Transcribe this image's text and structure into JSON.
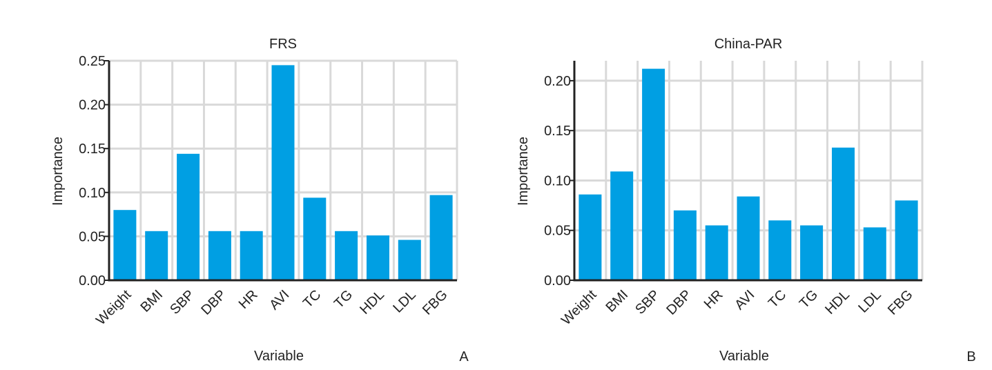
{
  "colors": {
    "bar": "#009FE3",
    "grid": "#d9d9d9",
    "axis": "#222222"
  },
  "chart_data": [
    {
      "type": "bar",
      "title": "FRS",
      "xlabel": "Variable",
      "ylabel": "Importance",
      "panel_label": "A",
      "categories": [
        "Weight",
        "BMI",
        "SBP",
        "DBP",
        "HR",
        "AVI",
        "TC",
        "TG",
        "HDL",
        "LDL",
        "FBG"
      ],
      "values": [
        0.08,
        0.056,
        0.144,
        0.056,
        0.056,
        0.245,
        0.094,
        0.056,
        0.051,
        0.046,
        0.097
      ],
      "ylim": [
        0,
        0.25
      ],
      "yticks": [
        0.0,
        0.05,
        0.1,
        0.15,
        0.2,
        0.25
      ],
      "ytick_labels": [
        "0.00",
        "0.05",
        "0.10",
        "0.15",
        "0.20",
        "0.25"
      ],
      "grid": true
    },
    {
      "type": "bar",
      "title": "China-PAR",
      "xlabel": "Variable",
      "ylabel": "Importance",
      "panel_label": "B",
      "categories": [
        "Weight",
        "BMI",
        "SBP",
        "DBP",
        "HR",
        "AVI",
        "TC",
        "TG",
        "HDL",
        "LDL",
        "FBG"
      ],
      "values": [
        0.086,
        0.109,
        0.212,
        0.07,
        0.055,
        0.084,
        0.06,
        0.055,
        0.133,
        0.053,
        0.08
      ],
      "ylim": [
        0,
        0.22
      ],
      "yticks": [
        0.0,
        0.05,
        0.1,
        0.15,
        0.2
      ],
      "ytick_labels": [
        "0.00",
        "0.05",
        "0.10",
        "0.15",
        "0.20"
      ],
      "grid": true
    }
  ]
}
